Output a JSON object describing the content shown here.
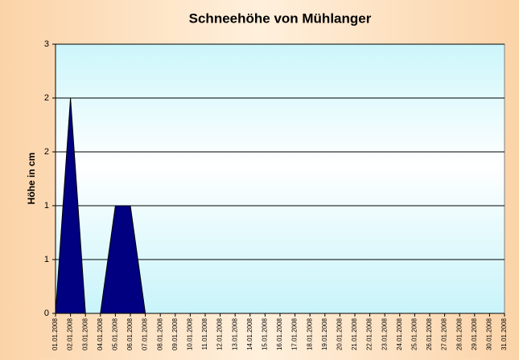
{
  "chart_data": {
    "type": "area",
    "title": "Schneehöhe von Mühlanger",
    "y_label": "Höhe in cm",
    "categories": [
      "01.01.2008",
      "02.01.2008",
      "03.01.2008",
      "04.01.2008",
      "05.01.2008",
      "06.01.2008",
      "07.01.2008",
      "08.01.2008",
      "09.01.2008",
      "10.01.2008",
      "11.01.2008",
      "12.01.2008",
      "13.01.2008",
      "14.01.2008",
      "15.01.2008",
      "16.01.2008",
      "17.01.2008",
      "18.01.2008",
      "19.01.2008",
      "20.01.2008",
      "21.01.2008",
      "22.01.2008",
      "23.01.2008",
      "24.01.2008",
      "25.01.2008",
      "26.01.2008",
      "27.01.2008",
      "28.01.2008",
      "29.01.2008",
      "30.01.2008",
      "31.01.2008"
    ],
    "values": [
      0,
      2.4,
      0,
      0,
      1.2,
      1.2,
      0,
      0,
      0,
      0,
      0,
      0,
      0,
      0,
      0,
      0,
      0,
      0,
      0,
      0,
      0,
      0,
      0,
      0,
      0,
      0,
      0,
      0,
      0,
      0,
      0
    ],
    "color": "#000080",
    "ylim": [
      0,
      3
    ],
    "yticks": [
      0,
      {
        "value": 0.6,
        "label": "1"
      },
      {
        "value": 1.2,
        "label": "1"
      },
      {
        "value": 1.8,
        "label": "2"
      },
      {
        "value": 2.4,
        "label": "2"
      },
      3
    ],
    "grid": true
  }
}
